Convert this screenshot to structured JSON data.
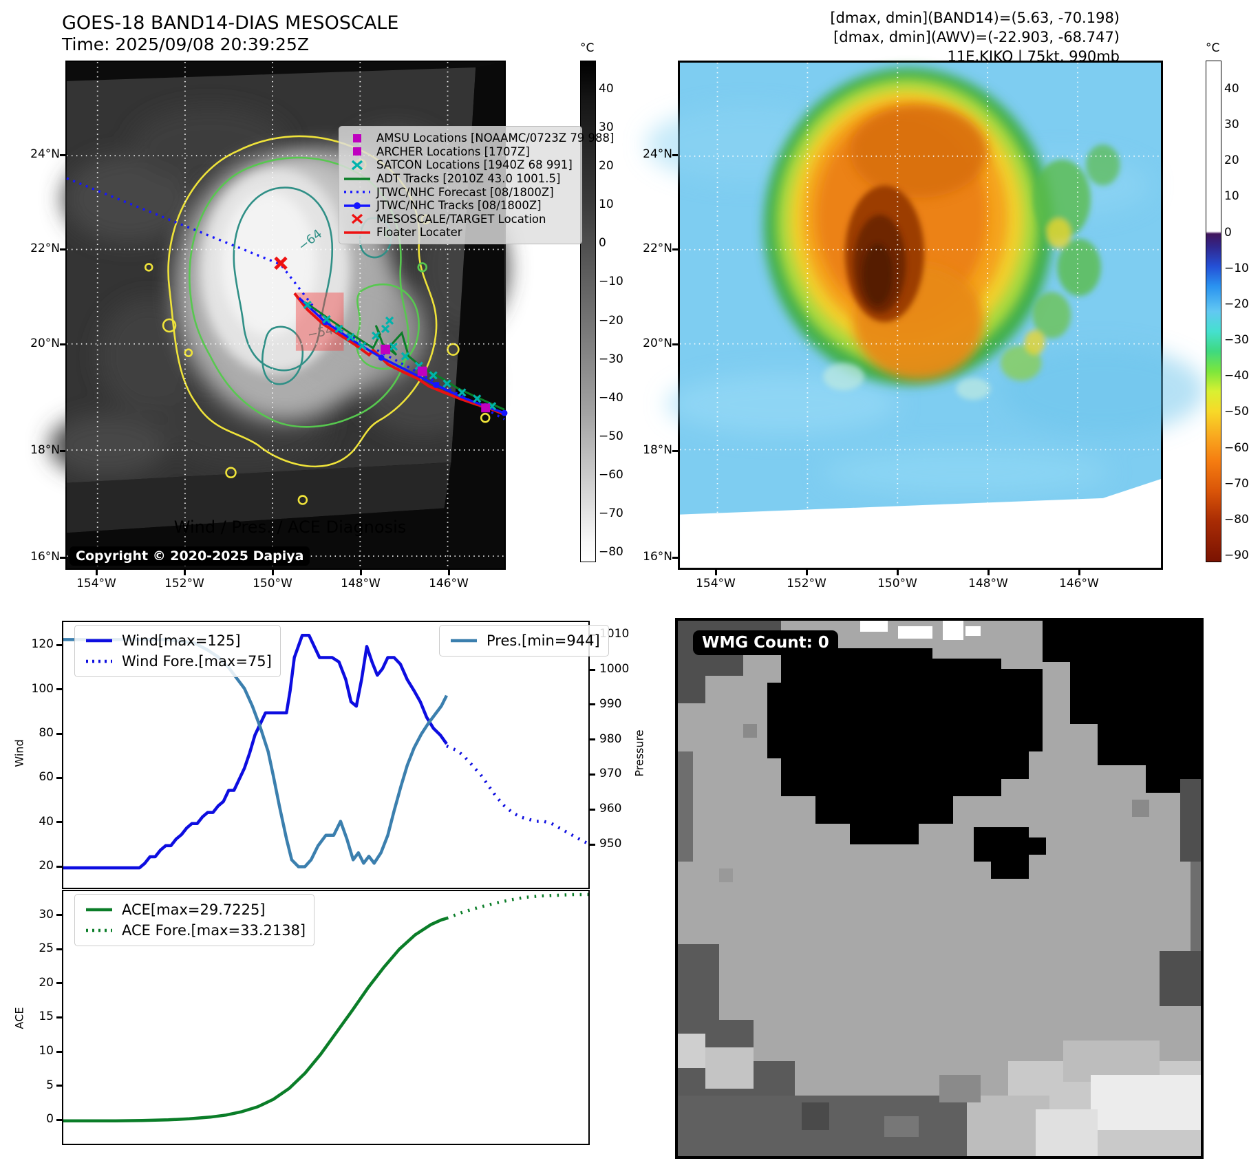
{
  "header": {
    "title_line1": "GOES-18 BAND14-DIAS MESOSCALE",
    "title_line2": "Time: 2025/09/08 20:39:25Z",
    "info_line1": "[dmax, dmin](BAND14)=(5.63, -70.198)",
    "info_line2": "[dmax, dmin](AWV)=(-22.903, -68.747)",
    "info_line3": "11E.KIKO | 75kt, 990mb"
  },
  "left_map": {
    "legend_items": [
      {
        "label": "AMSU Locations [NOAAMC/0723Z 79 988]",
        "marker": "square",
        "color": "#bf00bf"
      },
      {
        "label": "ARCHER Locations [1707Z]",
        "marker": "square",
        "color": "#bf00bf"
      },
      {
        "label": "SATCON Locations [1940Z 68 991]",
        "marker": "x",
        "color": "#00b3ac"
      },
      {
        "label": "ADT Tracks [2010Z 43.0 1001.5]",
        "marker": "line",
        "color": "#0a7d28"
      },
      {
        "label": "JTWC/NHC Forecast [08/1800Z]",
        "marker": "dotted",
        "color": "#1515ff"
      },
      {
        "label": "JTWC/NHC Tracks [08/1800Z]",
        "marker": "line-dot",
        "color": "#1515ff"
      },
      {
        "label": "MESOSCALE/TARGET Location",
        "marker": "x",
        "color": "#ee1111"
      },
      {
        "label": "Floater Locater",
        "marker": "line",
        "color": "#ee1111"
      }
    ],
    "copyright": "Copyright © 2020-2025 Dapiya",
    "x_ticks": [
      "154°W",
      "152°W",
      "150°W",
      "148°W",
      "146°W"
    ],
    "y_ticks": [
      "24°N",
      "22°N",
      "20°N",
      "18°N",
      "16°N"
    ],
    "contour_label_inner": "−64",
    "contour_label_outer": "−54",
    "colorbar": {
      "unit": "°C",
      "ticks": [
        "40",
        "30",
        "20",
        "10",
        "0",
        "−10",
        "−20",
        "−30",
        "−40",
        "−50",
        "−60",
        "−70",
        "−80"
      ]
    }
  },
  "right_map": {
    "x_ticks": [
      "154°W",
      "152°W",
      "150°W",
      "148°W",
      "146°W"
    ],
    "y_ticks": [
      "24°N",
      "22°N",
      "20°N",
      "18°N",
      "16°N"
    ],
    "colorbar": {
      "unit": "°C",
      "ticks": [
        "40",
        "30",
        "20",
        "10",
        "0",
        "−10",
        "−20",
        "−30",
        "−40",
        "−50",
        "−60",
        "−70",
        "−80",
        "−90"
      ]
    }
  },
  "diagnosis_title": "Wind / Pres. / ACE Diagnosis",
  "wmg": {
    "label": "WMG Count: 0"
  },
  "chart_data": [
    {
      "type": "line",
      "title": "Wind / Pres. / ACE Diagnosis",
      "left_axis": {
        "label": "Wind",
        "ticks": [
          20,
          40,
          60,
          80,
          100,
          120
        ],
        "ylim": [
          11,
          131
        ]
      },
      "right_axis": {
        "label": "Pressure",
        "ticks": [
          950,
          960,
          970,
          980,
          990,
          1000,
          1010
        ],
        "ylim": [
          938,
          1014
        ]
      },
      "xlim": [
        0,
        1
      ],
      "series": [
        {
          "name": "Wind[max=125]",
          "style": "solid",
          "color": "#0d0de0",
          "axis": "left",
          "x": [
            0,
            0.04,
            0.08,
            0.12,
            0.145,
            0.155,
            0.165,
            0.175,
            0.185,
            0.195,
            0.205,
            0.215,
            0.225,
            0.235,
            0.245,
            0.255,
            0.265,
            0.275,
            0.285,
            0.295,
            0.305,
            0.315,
            0.325,
            0.335,
            0.345,
            0.355,
            0.365,
            0.385,
            0.405,
            0.425,
            0.432,
            0.44,
            0.455,
            0.468,
            0.478,
            0.488,
            0.5,
            0.512,
            0.525,
            0.538,
            0.548,
            0.558,
            0.568,
            0.578,
            0.588,
            0.598,
            0.608,
            0.618,
            0.63,
            0.642,
            0.655,
            0.668,
            0.68,
            0.692,
            0.705,
            0.718,
            0.73
          ],
          "y": [
            20,
            20,
            20,
            20,
            20,
            22,
            25,
            25,
            28,
            30,
            30,
            33,
            35,
            38,
            40,
            40,
            43,
            45,
            45,
            48,
            50,
            55,
            55,
            60,
            65,
            72,
            80,
            90,
            90,
            90,
            100,
            115,
            125,
            125,
            120,
            115,
            115,
            115,
            113,
            105,
            95,
            93,
            105,
            120,
            113,
            107,
            110,
            115,
            115,
            112,
            105,
            100,
            95,
            88,
            83,
            80,
            76
          ]
        },
        {
          "name": "Wind Fore.[max=75]",
          "style": "dotted",
          "color": "#0d0de0",
          "axis": "left",
          "x": [
            0.73,
            0.75,
            0.765,
            0.78,
            0.795,
            0.81,
            0.825,
            0.84,
            0.855,
            0.87,
            0.885,
            0.9,
            0.915,
            0.93,
            0.945,
            0.96,
            0.975,
            0.99,
            1
          ],
          "y": [
            75,
            73,
            70,
            66,
            62,
            57,
            52,
            48,
            45,
            43,
            42,
            41,
            41,
            40,
            38,
            36,
            34,
            32,
            31
          ]
        },
        {
          "name": "Pres.[min=944]",
          "style": "solid",
          "color": "#3b7fae",
          "axis": "right",
          "x": [
            0,
            0.05,
            0.1,
            0.15,
            0.2,
            0.25,
            0.275,
            0.295,
            0.315,
            0.33,
            0.345,
            0.36,
            0.375,
            0.39,
            0.4,
            0.412,
            0.425,
            0.435,
            0.448,
            0.46,
            0.472,
            0.485,
            0.5,
            0.515,
            0.528,
            0.54,
            0.552,
            0.562,
            0.572,
            0.582,
            0.592,
            0.605,
            0.618,
            0.63,
            0.643,
            0.655,
            0.668,
            0.682,
            0.695,
            0.71,
            0.72,
            0.73
          ],
          "y": [
            1009,
            1009,
            1009,
            1009,
            1009,
            1008,
            1006,
            1004,
            1001,
            998,
            995,
            990,
            984,
            977,
            970,
            961,
            952,
            946,
            944,
            944,
            946,
            950,
            953,
            953,
            957,
            952,
            946,
            948,
            945,
            947,
            945,
            948,
            953,
            960,
            967,
            973,
            978,
            982,
            985,
            988,
            990,
            993
          ]
        }
      ]
    },
    {
      "type": "line",
      "left_axis": {
        "label": "ACE",
        "ticks": [
          0,
          5,
          10,
          15,
          20,
          25,
          30
        ],
        "ylim": [
          -3.3,
          33.7
        ]
      },
      "xlim": [
        0,
        1
      ],
      "series": [
        {
          "name": "ACE[max=29.7225]",
          "style": "solid",
          "color": "#0a7d28",
          "axis": "left",
          "x": [
            0,
            0.05,
            0.1,
            0.15,
            0.2,
            0.24,
            0.28,
            0.31,
            0.34,
            0.37,
            0.4,
            0.43,
            0.46,
            0.49,
            0.52,
            0.55,
            0.58,
            0.61,
            0.64,
            0.67,
            0.7,
            0.72,
            0.73
          ],
          "y": [
            0.05,
            0.05,
            0.05,
            0.1,
            0.2,
            0.35,
            0.6,
            0.9,
            1.4,
            2.1,
            3.2,
            4.8,
            7,
            9.8,
            13,
            16.2,
            19.5,
            22.5,
            25.2,
            27.3,
            28.8,
            29.5,
            29.72
          ]
        },
        {
          "name": "ACE Fore.[max=33.2138]",
          "style": "dotted",
          "color": "#0a7d28",
          "axis": "left",
          "x": [
            0.73,
            0.76,
            0.79,
            0.82,
            0.85,
            0.88,
            0.91,
            0.94,
            0.97,
            1
          ],
          "y": [
            29.72,
            30.6,
            31.3,
            31.9,
            32.4,
            32.8,
            33,
            33.1,
            33.2,
            33.21
          ]
        }
      ]
    }
  ]
}
